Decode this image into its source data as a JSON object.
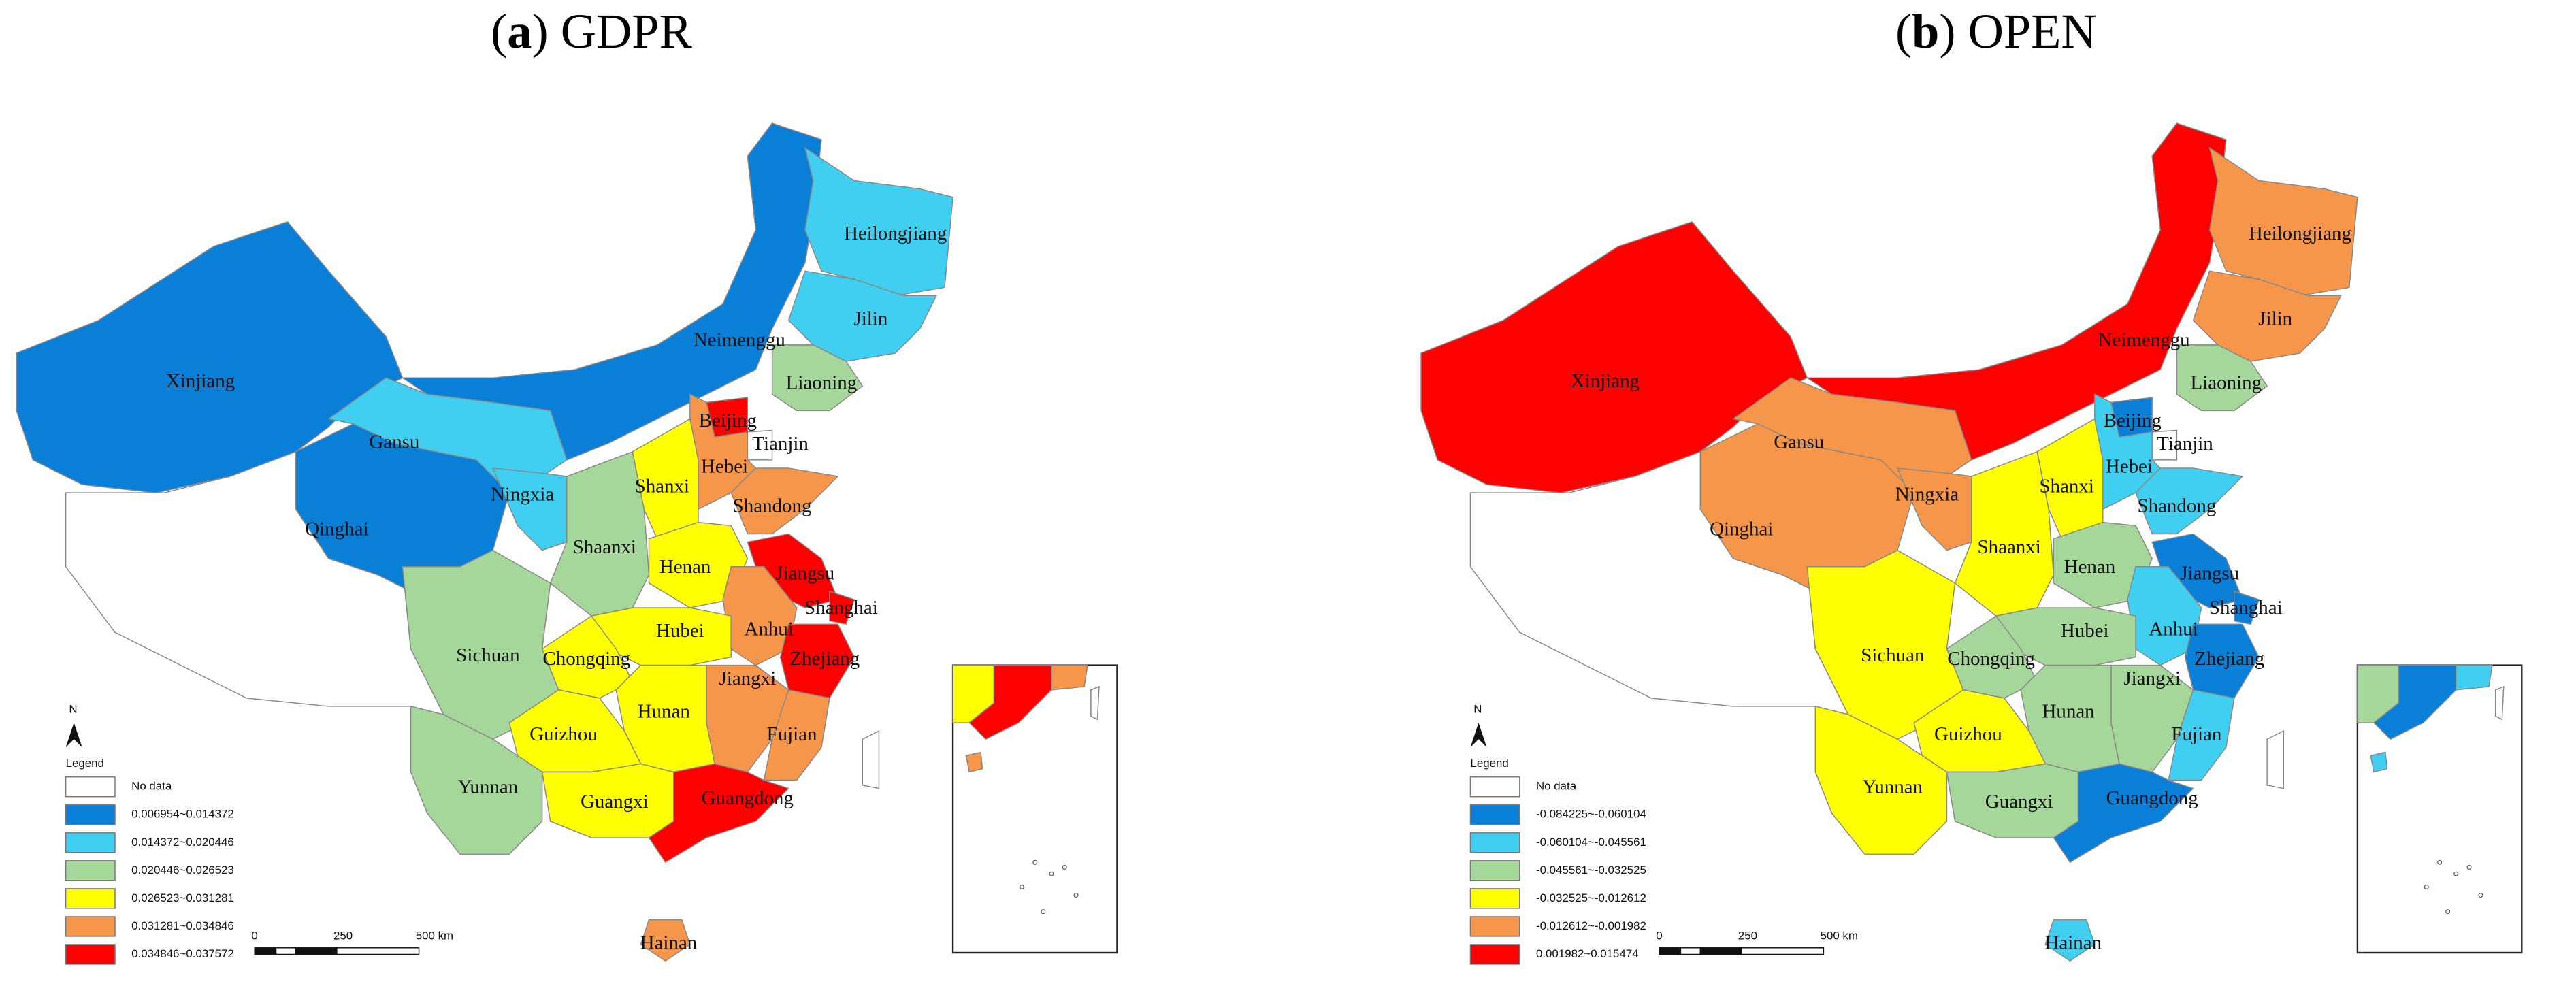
{
  "panels": [
    {
      "title_parts": [
        "(",
        "a",
        ") GDPR"
      ],
      "legend": {
        "title": "Legend",
        "items": [
          {
            "label": "No data",
            "color": "#ffffff"
          },
          {
            "label": "0.006954~0.014372",
            "color": "#0a7fd8"
          },
          {
            "label": "0.014372~0.020446",
            "color": "#40cff0"
          },
          {
            "label": "0.020446~0.026523",
            "color": "#a5d79b"
          },
          {
            "label": "0.026523~0.031281",
            "color": "#ffff00"
          },
          {
            "label": "0.031281~0.034846",
            "color": "#f5964a"
          },
          {
            "label": "0.034846~0.037572",
            "color": "#ff0000"
          }
        ]
      },
      "north": "N",
      "scale_labels": [
        "0",
        "250",
        "500 km"
      ],
      "provinces": [
        {
          "name": "Xinjiang",
          "color": "#0a7fd8"
        },
        {
          "name": "Neimenggu",
          "color": "#0a7fd8"
        },
        {
          "name": "Heilongjiang",
          "color": "#40cff0"
        },
        {
          "name": "Jilin",
          "color": "#40cff0"
        },
        {
          "name": "Liaoning",
          "color": "#a5d79b"
        },
        {
          "name": "Gansu",
          "color": "#40cff0"
        },
        {
          "name": "Qinghai",
          "color": "#0a7fd8"
        },
        {
          "name": "Ningxia",
          "color": "#40cff0"
        },
        {
          "name": "Beijing",
          "color": "#ff0000"
        },
        {
          "name": "Tianjin",
          "color": "#ffffff"
        },
        {
          "name": "Hebei",
          "color": "#f5964a"
        },
        {
          "name": "Shanxi",
          "color": "#ffff00"
        },
        {
          "name": "Shandong",
          "color": "#f5964a"
        },
        {
          "name": "Shaanxi",
          "color": "#a5d79b"
        },
        {
          "name": "Henan",
          "color": "#ffff00"
        },
        {
          "name": "Jiangsu",
          "color": "#ff0000"
        },
        {
          "name": "Shanghai",
          "color": "#ff0000"
        },
        {
          "name": "Anhui",
          "color": "#f5964a"
        },
        {
          "name": "Hubei",
          "color": "#ffff00"
        },
        {
          "name": "Zhejiang",
          "color": "#ff0000"
        },
        {
          "name": "Chongqing",
          "color": "#ffff00"
        },
        {
          "name": "Sichuan",
          "color": "#a5d79b"
        },
        {
          "name": "Jiangxi",
          "color": "#f5964a"
        },
        {
          "name": "Hunan",
          "color": "#ffff00"
        },
        {
          "name": "Guizhou",
          "color": "#ffff00"
        },
        {
          "name": "Fujian",
          "color": "#f5964a"
        },
        {
          "name": "Yunnan",
          "color": "#a5d79b"
        },
        {
          "name": "Guangxi",
          "color": "#ffff00"
        },
        {
          "name": "Guangdong",
          "color": "#ff0000"
        },
        {
          "name": "Hainan",
          "color": "#f5964a"
        }
      ]
    },
    {
      "title_parts": [
        "(",
        "b",
        ") OPEN"
      ],
      "legend": {
        "title": "Legend",
        "items": [
          {
            "label": "No data",
            "color": "#ffffff"
          },
          {
            "label": "-0.084225~-0.060104",
            "color": "#0a7fd8"
          },
          {
            "label": "-0.060104~-0.045561",
            "color": "#40cff0"
          },
          {
            "label": "-0.045561~-0.032525",
            "color": "#a5d79b"
          },
          {
            "label": "-0.032525~-0.012612",
            "color": "#ffff00"
          },
          {
            "label": "-0.012612~-0.001982",
            "color": "#f5964a"
          },
          {
            "label": "0.001982~0.015474",
            "color": "#ff0000"
          }
        ]
      },
      "north": "N",
      "scale_labels": [
        "0",
        "250",
        "500 km"
      ],
      "provinces": [
        {
          "name": "Xinjiang",
          "color": "#ff0000"
        },
        {
          "name": "Neimenggu",
          "color": "#ff0000"
        },
        {
          "name": "Heilongjiang",
          "color": "#f5964a"
        },
        {
          "name": "Jilin",
          "color": "#f5964a"
        },
        {
          "name": "Liaoning",
          "color": "#a5d79b"
        },
        {
          "name": "Gansu",
          "color": "#f5964a"
        },
        {
          "name": "Qinghai",
          "color": "#f5964a"
        },
        {
          "name": "Ningxia",
          "color": "#f5964a"
        },
        {
          "name": "Beijing",
          "color": "#0a7fd8"
        },
        {
          "name": "Tianjin",
          "color": "#ffffff"
        },
        {
          "name": "Hebei",
          "color": "#40cff0"
        },
        {
          "name": "Shanxi",
          "color": "#ffff00"
        },
        {
          "name": "Shandong",
          "color": "#40cff0"
        },
        {
          "name": "Shaanxi",
          "color": "#ffff00"
        },
        {
          "name": "Henan",
          "color": "#a5d79b"
        },
        {
          "name": "Jiangsu",
          "color": "#0a7fd8"
        },
        {
          "name": "Shanghai",
          "color": "#0a7fd8"
        },
        {
          "name": "Anhui",
          "color": "#40cff0"
        },
        {
          "name": "Hubei",
          "color": "#a5d79b"
        },
        {
          "name": "Zhejiang",
          "color": "#0a7fd8"
        },
        {
          "name": "Chongqing",
          "color": "#a5d79b"
        },
        {
          "name": "Sichuan",
          "color": "#ffff00"
        },
        {
          "name": "Jiangxi",
          "color": "#a5d79b"
        },
        {
          "name": "Hunan",
          "color": "#a5d79b"
        },
        {
          "name": "Guizhou",
          "color": "#ffff00"
        },
        {
          "name": "Fujian",
          "color": "#40cff0"
        },
        {
          "name": "Yunnan",
          "color": "#ffff00"
        },
        {
          "name": "Guangxi",
          "color": "#a5d79b"
        },
        {
          "name": "Guangdong",
          "color": "#0a7fd8"
        },
        {
          "name": "Hainan",
          "color": "#40cff0"
        }
      ]
    }
  ]
}
